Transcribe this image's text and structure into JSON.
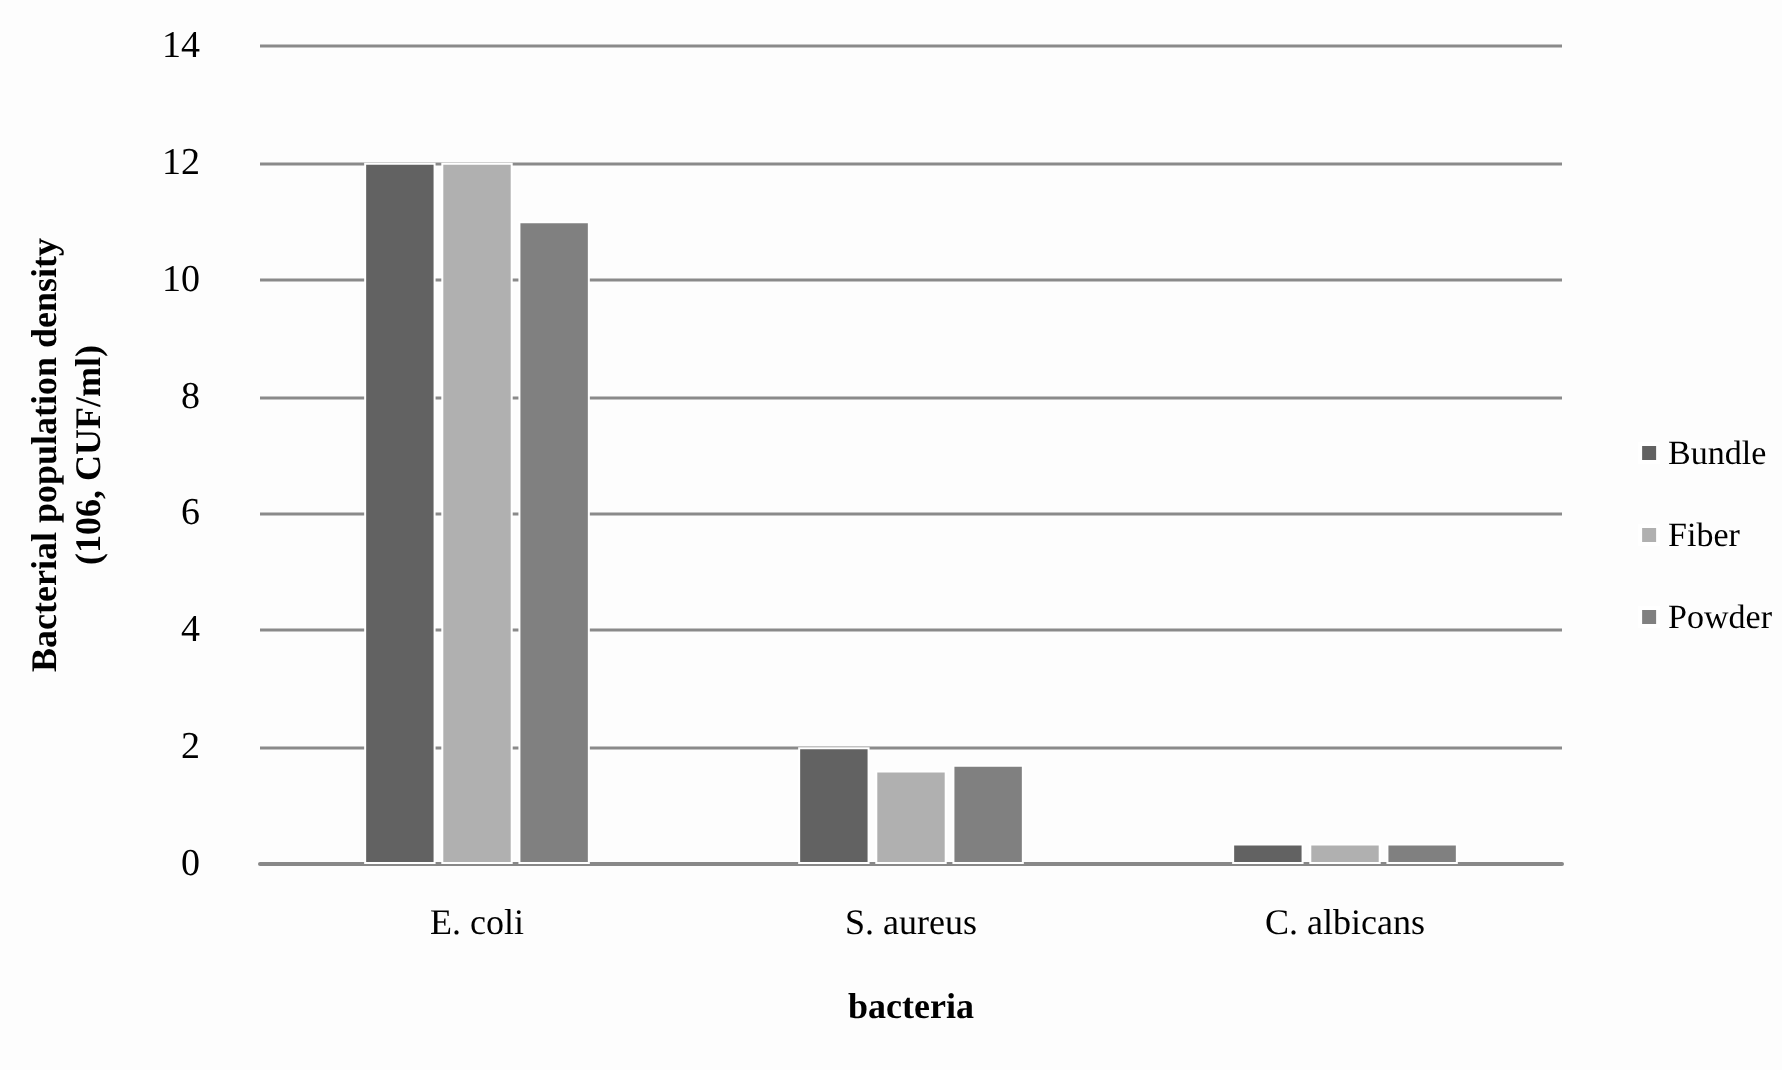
{
  "chart_data": {
    "type": "bar",
    "xlabel": "bacteria",
    "ylabel": "Bacterial population density\n(106, CUF/ml)",
    "categories": [
      "E. coli",
      "S. aureus",
      "C. albicans"
    ],
    "series": [
      {
        "name": "Bundle",
        "color": "#626262",
        "values": [
          12,
          2,
          0.35
        ]
      },
      {
        "name": "Fiber",
        "color": "#b0b0b0",
        "values": [
          12,
          1.6,
          0.35
        ]
      },
      {
        "name": "Powder",
        "color": "#808080",
        "values": [
          11,
          1.7,
          0.35
        ]
      }
    ],
    "ylim": [
      0,
      14
    ],
    "yticks": [
      0,
      2,
      4,
      6,
      8,
      10,
      12,
      14
    ],
    "grid": "y",
    "legend": "right"
  }
}
